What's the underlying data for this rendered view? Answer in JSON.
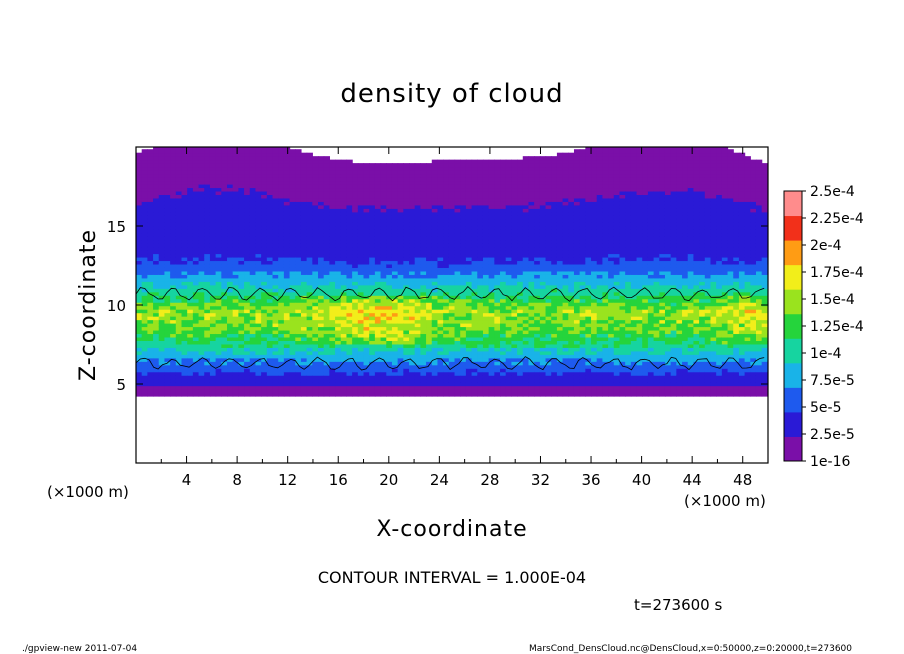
{
  "chart_data": {
    "type": "heatmap",
    "title": "density of cloud",
    "xlabel": "X-coordinate",
    "ylabel": "Z-coordinate",
    "x_unit": "(×1000 m)",
    "y_unit": "(×1000 m)",
    "xlim": [
      0,
      50
    ],
    "ylim": [
      0,
      20
    ],
    "xticks": [
      "4",
      "8",
      "12",
      "16",
      "20",
      "24",
      "28",
      "32",
      "36",
      "40",
      "44",
      "48"
    ],
    "yticks": [
      "5",
      "10",
      "15"
    ],
    "grid": false,
    "colorbar": {
      "labels": [
        "1e-16",
        "2.5e-5",
        "5e-5",
        "7.5e-5",
        "1e-4",
        "1.25e-4",
        "1.5e-4",
        "1.75e-4",
        "2e-4",
        "2.25e-4",
        "2.5e-4"
      ],
      "colors": [
        "#7a0fa8",
        "#2a1ad6",
        "#1e5aee",
        "#19b3e8",
        "#16d4a0",
        "#25d43c",
        "#9ae31e",
        "#f2ee1a",
        "#ff9c14",
        "#f2301a",
        "#ff8c8c"
      ]
    },
    "profile": {
      "description_z_km": [
        4.5,
        6,
        7.5,
        8.5,
        9.5,
        10.5,
        11.5,
        12.5,
        14,
        16,
        17.5,
        19
      ],
      "density": [
        2e-06,
        5e-05,
        0.00011,
        0.00014,
        0.00015,
        0.00011,
        7.5e-05,
        4e-05,
        2e-05,
        1.5e-05,
        5e-06,
        1e-06
      ]
    },
    "contour_interval_text": "CONTOUR INTERVAL = 1.000E-04",
    "time_text": "t=273600 s"
  },
  "footer": {
    "left": "./gpview-new  2011-07-04",
    "right": "MarsCond_DensCloud.nc@DensCloud,x=0:50000,z=0:20000,t=273600"
  }
}
